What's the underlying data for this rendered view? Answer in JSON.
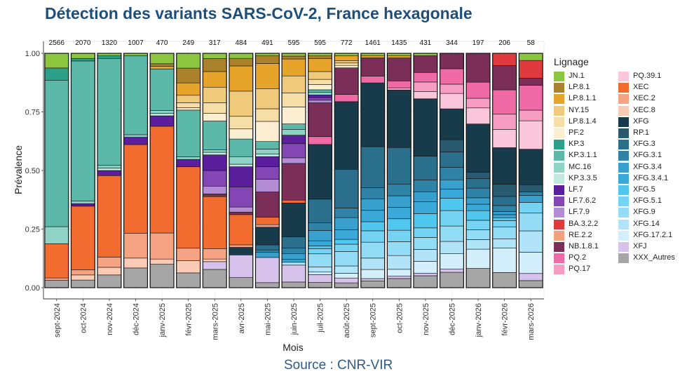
{
  "title": "Détection des variants SARS-CoV-2, France hexagonale",
  "source": "Source : CNR-VIR",
  "chart_data": {
    "type": "bar",
    "stacked": true,
    "xlabel": "Mois",
    "ylabel": "Prévalence",
    "ylim": [
      0,
      1
    ],
    "yticks": [
      "0.00",
      "0.25",
      "0.50",
      "0.75",
      "1.00"
    ],
    "grid": true,
    "legend_title": "Lignage",
    "legend_position": "right",
    "categories": [
      "sept-2024",
      "oct-2024",
      "nov-2024",
      "déc-2024",
      "janv-2025",
      "févr-2025",
      "mars-2025",
      "avr-2025",
      "mai-2025",
      "juin-2025",
      "juil-2025",
      "août-2025",
      "sept-2025",
      "oct-2025",
      "nov-2025",
      "déc-2025",
      "janv-2026",
      "févr-2026",
      "mars-2026"
    ],
    "counts": [
      "2566",
      "2070",
      "1320",
      "1007",
      "470",
      "249",
      "317",
      "484",
      "491",
      "595",
      "595",
      "772",
      "1461",
      "1435",
      "431",
      "344",
      "197",
      "206",
      "58"
    ],
    "series": [
      {
        "name": "JN.1",
        "color": "#8cc63f",
        "values": [
          0.06,
          0.02,
          0.01,
          0.01,
          0.04,
          0.06,
          0.02,
          0.02,
          0.01,
          0.01,
          0.01,
          0.01,
          0.01,
          0.01,
          0.01,
          0,
          0,
          0,
          0.02
        ]
      },
      {
        "name": "LP.8.1",
        "color": "#a9822b",
        "values": [
          0,
          0,
          0,
          0,
          0.01,
          0.06,
          0.05,
          0.03,
          0.03,
          0.01,
          0.01,
          0,
          0,
          0,
          0,
          0,
          0,
          0,
          0
        ]
      },
      {
        "name": "LP.8.1.1",
        "color": "#e6a52a",
        "values": [
          0,
          0,
          0,
          0,
          0.01,
          0.05,
          0.06,
          0.1,
          0.1,
          0.06,
          0.05,
          0.02,
          0.01,
          0.01,
          0,
          0,
          0,
          0,
          0
        ]
      },
      {
        "name": "NY.15",
        "color": "#f1c97a",
        "values": [
          0,
          0,
          0,
          0,
          0,
          0.03,
          0.06,
          0.1,
          0.08,
          0.06,
          0.03,
          0.01,
          0,
          0,
          0,
          0,
          0,
          0,
          0
        ]
      },
      {
        "name": "LP.8.1.4",
        "color": "#f6dfa6",
        "values": [
          0,
          0,
          0,
          0,
          0,
          0.02,
          0.04,
          0.05,
          0.05,
          0.05,
          0.02,
          0.01,
          0,
          0,
          0,
          0,
          0,
          0,
          0
        ]
      },
      {
        "name": "PF.2",
        "color": "#fbeed1",
        "values": [
          0,
          0,
          0,
          0,
          0,
          0.01,
          0.03,
          0.04,
          0.08,
          0.06,
          0.02,
          0.01,
          0,
          0,
          0,
          0,
          0,
          0,
          0
        ]
      },
      {
        "name": "KP.3",
        "color": "#2ca089",
        "values": [
          0.05,
          0.01,
          0.01,
          0,
          0,
          0,
          0,
          0,
          0,
          0,
          0,
          0,
          0,
          0,
          0,
          0,
          0,
          0,
          0
        ]
      },
      {
        "name": "KP.3.1.1",
        "color": "#5cb8a8",
        "values": [
          0.6,
          0.55,
          0.42,
          0.32,
          0.16,
          0.19,
          0.11,
          0.07,
          0.03,
          0.02,
          0.01,
          0,
          0,
          0,
          0,
          0,
          0,
          0,
          0
        ]
      },
      {
        "name": "MC.16",
        "color": "#8fd3c6",
        "values": [
          0.07,
          0.01,
          0.01,
          0.01,
          0.01,
          0.01,
          0.01,
          0.03,
          0.02,
          0.02,
          0.01,
          0,
          0,
          0,
          0,
          0,
          0,
          0,
          0
        ]
      },
      {
        "name": "KP.3.3.5",
        "color": "#c1e8df",
        "values": [
          0,
          0,
          0.01,
          0,
          0.01,
          0,
          0.01,
          0.01,
          0.01,
          0,
          0,
          0,
          0,
          0,
          0,
          0,
          0,
          0,
          0
        ]
      },
      {
        "name": "LF.7",
        "color": "#5b1f9e",
        "values": [
          0,
          0.01,
          0.02,
          0.03,
          0.04,
          0.03,
          0.06,
          0.08,
          0.04,
          0.03,
          0.01,
          0,
          0,
          0,
          0,
          0,
          0,
          0,
          0
        ]
      },
      {
        "name": "LF.7.6.2",
        "color": "#8446b4",
        "values": [
          0,
          0,
          0,
          0,
          0,
          0,
          0.06,
          0.08,
          0.05,
          0.05,
          0.01,
          0,
          0,
          0,
          0,
          0,
          0,
          0,
          0
        ]
      },
      {
        "name": "LF.7.9",
        "color": "#b28dd6",
        "values": [
          0,
          0,
          0,
          0,
          0,
          0,
          0.03,
          0.02,
          0.05,
          0.02,
          0.01,
          0,
          0,
          0,
          0,
          0,
          0,
          0,
          0
        ]
      },
      {
        "name": "BA.3.2.2",
        "color": "#e03a3e",
        "values": [
          0,
          0,
          0,
          0,
          0,
          0,
          0,
          0,
          0,
          0,
          0,
          0,
          0,
          0,
          0,
          0,
          0,
          0.04,
          0.05
        ]
      },
      {
        "name": "RE.2.2",
        "color": "#f3a07e",
        "values": [
          0,
          0,
          0,
          0,
          0,
          0,
          0,
          0,
          0,
          0,
          0,
          0,
          0,
          0,
          0,
          0,
          0,
          0,
          0
        ]
      },
      {
        "name": "NB.1.8.1",
        "color": "#7a2e58",
        "values": [
          0,
          0,
          0,
          0,
          0,
          0,
          0.01,
          0.01,
          0.1,
          0.13,
          0.13,
          0.11,
          0.08,
          0.1,
          0.07,
          0.05,
          0.09,
          0.08,
          0.02
        ]
      },
      {
        "name": "PQ.2",
        "color": "#f06aa6",
        "values": [
          0,
          0,
          0,
          0,
          0,
          0,
          0,
          0,
          0,
          0,
          0.03,
          0.03,
          0.03,
          0.03,
          0.04,
          0.05,
          0.05,
          0.08,
          0.07
        ]
      },
      {
        "name": "PQ.17",
        "color": "#f79cc3",
        "values": [
          0,
          0,
          0,
          0,
          0,
          0,
          0,
          0,
          0,
          0,
          0,
          0,
          0,
          0.01,
          0.04,
          0.03,
          0.03,
          0.05,
          0.03
        ]
      },
      {
        "name": "PQ.39.1",
        "color": "#fbc5dc",
        "values": [
          0,
          0,
          0,
          0,
          0,
          0,
          0,
          0,
          0,
          0,
          0,
          0,
          0,
          0,
          0.03,
          0.05,
          0.05,
          0.06,
          0.08
        ]
      },
      {
        "name": "XEC",
        "color": "#f26c2f",
        "values": [
          0.14,
          0.25,
          0.32,
          0.36,
          0.41,
          0.33,
          0.2,
          0.12,
          0.03,
          0.01,
          0,
          0,
          0,
          0,
          0,
          0,
          0,
          0,
          0
        ]
      },
      {
        "name": "XEC.2",
        "color": "#f6a384",
        "values": [
          0.01,
          0.02,
          0.04,
          0.1,
          0.1,
          0.05,
          0.04,
          0.01,
          0.01,
          0,
          0,
          0,
          0,
          0,
          0,
          0,
          0,
          0,
          0
        ]
      },
      {
        "name": "XEC.8",
        "color": "#fbcbb6",
        "values": [
          0,
          0.02,
          0.03,
          0.04,
          0.02,
          0.05,
          0.01,
          0,
          0,
          0,
          0,
          0,
          0,
          0,
          0,
          0,
          0,
          0,
          0
        ]
      },
      {
        "name": "XFG",
        "color": "#173b4a",
        "values": [
          0,
          0,
          0,
          0,
          0,
          0,
          0,
          0.03,
          0.07,
          0.12,
          0.21,
          0.28,
          0.28,
          0.25,
          0.24,
          0.1,
          0.15,
          0.12,
          0.1
        ]
      },
      {
        "name": "RP.1",
        "color": "#2a5a70",
        "values": [
          0,
          0,
          0,
          0,
          0,
          0,
          0,
          0,
          0,
          0,
          0,
          0,
          0,
          0,
          0,
          0.04,
          0.02,
          0.04,
          0.02
        ]
      },
      {
        "name": "XFG.3",
        "color": "#2a6f8c",
        "values": [
          0,
          0,
          0,
          0,
          0,
          0,
          0,
          0,
          0.02,
          0.04,
          0.09,
          0.16,
          0.18,
          0.16,
          0.1,
          0.05,
          0.03,
          0.03,
          0
        ]
      },
      {
        "name": "XFG.3.1",
        "color": "#2f83a7",
        "values": [
          0,
          0,
          0,
          0,
          0,
          0,
          0,
          0,
          0.01,
          0.02,
          0.03,
          0.04,
          0.05,
          0.05,
          0.05,
          0.04,
          0.03,
          0.02,
          0.01
        ]
      },
      {
        "name": "XFG.3.4",
        "color": "#38a0cd",
        "values": [
          0,
          0,
          0,
          0,
          0,
          0,
          0,
          0,
          0.02,
          0.02,
          0.04,
          0.05,
          0.05,
          0.05,
          0.04,
          0.03,
          0.02,
          0.01,
          0.02
        ]
      },
      {
        "name": "XFG.3.4.1",
        "color": "#3aa8d8",
        "values": [
          0,
          0,
          0,
          0,
          0,
          0,
          0,
          0,
          0,
          0.01,
          0.02,
          0.04,
          0.05,
          0.05,
          0.05,
          0.03,
          0.02,
          0.01,
          0
        ]
      },
      {
        "name": "XFG.5",
        "color": "#4fc7ef",
        "values": [
          0,
          0,
          0,
          0,
          0,
          0,
          0,
          0,
          0,
          0,
          0.01,
          0.02,
          0.04,
          0.05,
          0.06,
          0.04,
          0.03,
          0.01,
          0
        ]
      },
      {
        "name": "XFG.5.1",
        "color": "#75d3f3",
        "values": [
          0,
          0,
          0,
          0,
          0,
          0,
          0,
          0,
          0,
          0,
          0.02,
          0.03,
          0.05,
          0.05,
          0.04,
          0.05,
          0.03,
          0.02,
          0.03
        ]
      },
      {
        "name": "XFG.9",
        "color": "#93dcf6",
        "values": [
          0,
          0,
          0,
          0,
          0,
          0,
          0,
          0,
          0,
          0,
          0.05,
          0.06,
          0.07,
          0.06,
          0.05,
          0.05,
          0.03,
          0.04,
          0.05
        ]
      },
      {
        "name": "XFG.14",
        "color": "#b1e4f8",
        "values": [
          0,
          0,
          0,
          0,
          0,
          0,
          0,
          0,
          0,
          0.01,
          0.02,
          0.03,
          0.05,
          0.06,
          0.05,
          0.04,
          0.03,
          0.03,
          0.06
        ]
      },
      {
        "name": "XFG.17.2.1",
        "color": "#d2effb",
        "values": [
          0,
          0,
          0,
          0,
          0,
          0,
          0,
          0,
          0,
          0,
          0.01,
          0.02,
          0.04,
          0.03,
          0.05,
          0.05,
          0.06,
          0.08,
          0.06
        ]
      },
      {
        "name": "XFJ",
        "color": "#d6c2ea",
        "values": [
          0,
          0,
          0,
          0,
          0,
          0,
          0.03,
          0.09,
          0.1,
          0.06,
          0.03,
          0.02,
          0.01,
          0.01,
          0.01,
          0.01,
          0,
          0,
          0.02
        ]
      },
      {
        "name": "XXX_Autres",
        "color": "#a6a6a6",
        "values": [
          0.03,
          0.03,
          0.05,
          0.08,
          0.09,
          0.06,
          0.07,
          0.04,
          0.02,
          0.02,
          0.02,
          0.02,
          0.03,
          0.04,
          0.05,
          0.05,
          0.06,
          0.05,
          0.02
        ]
      }
    ]
  }
}
